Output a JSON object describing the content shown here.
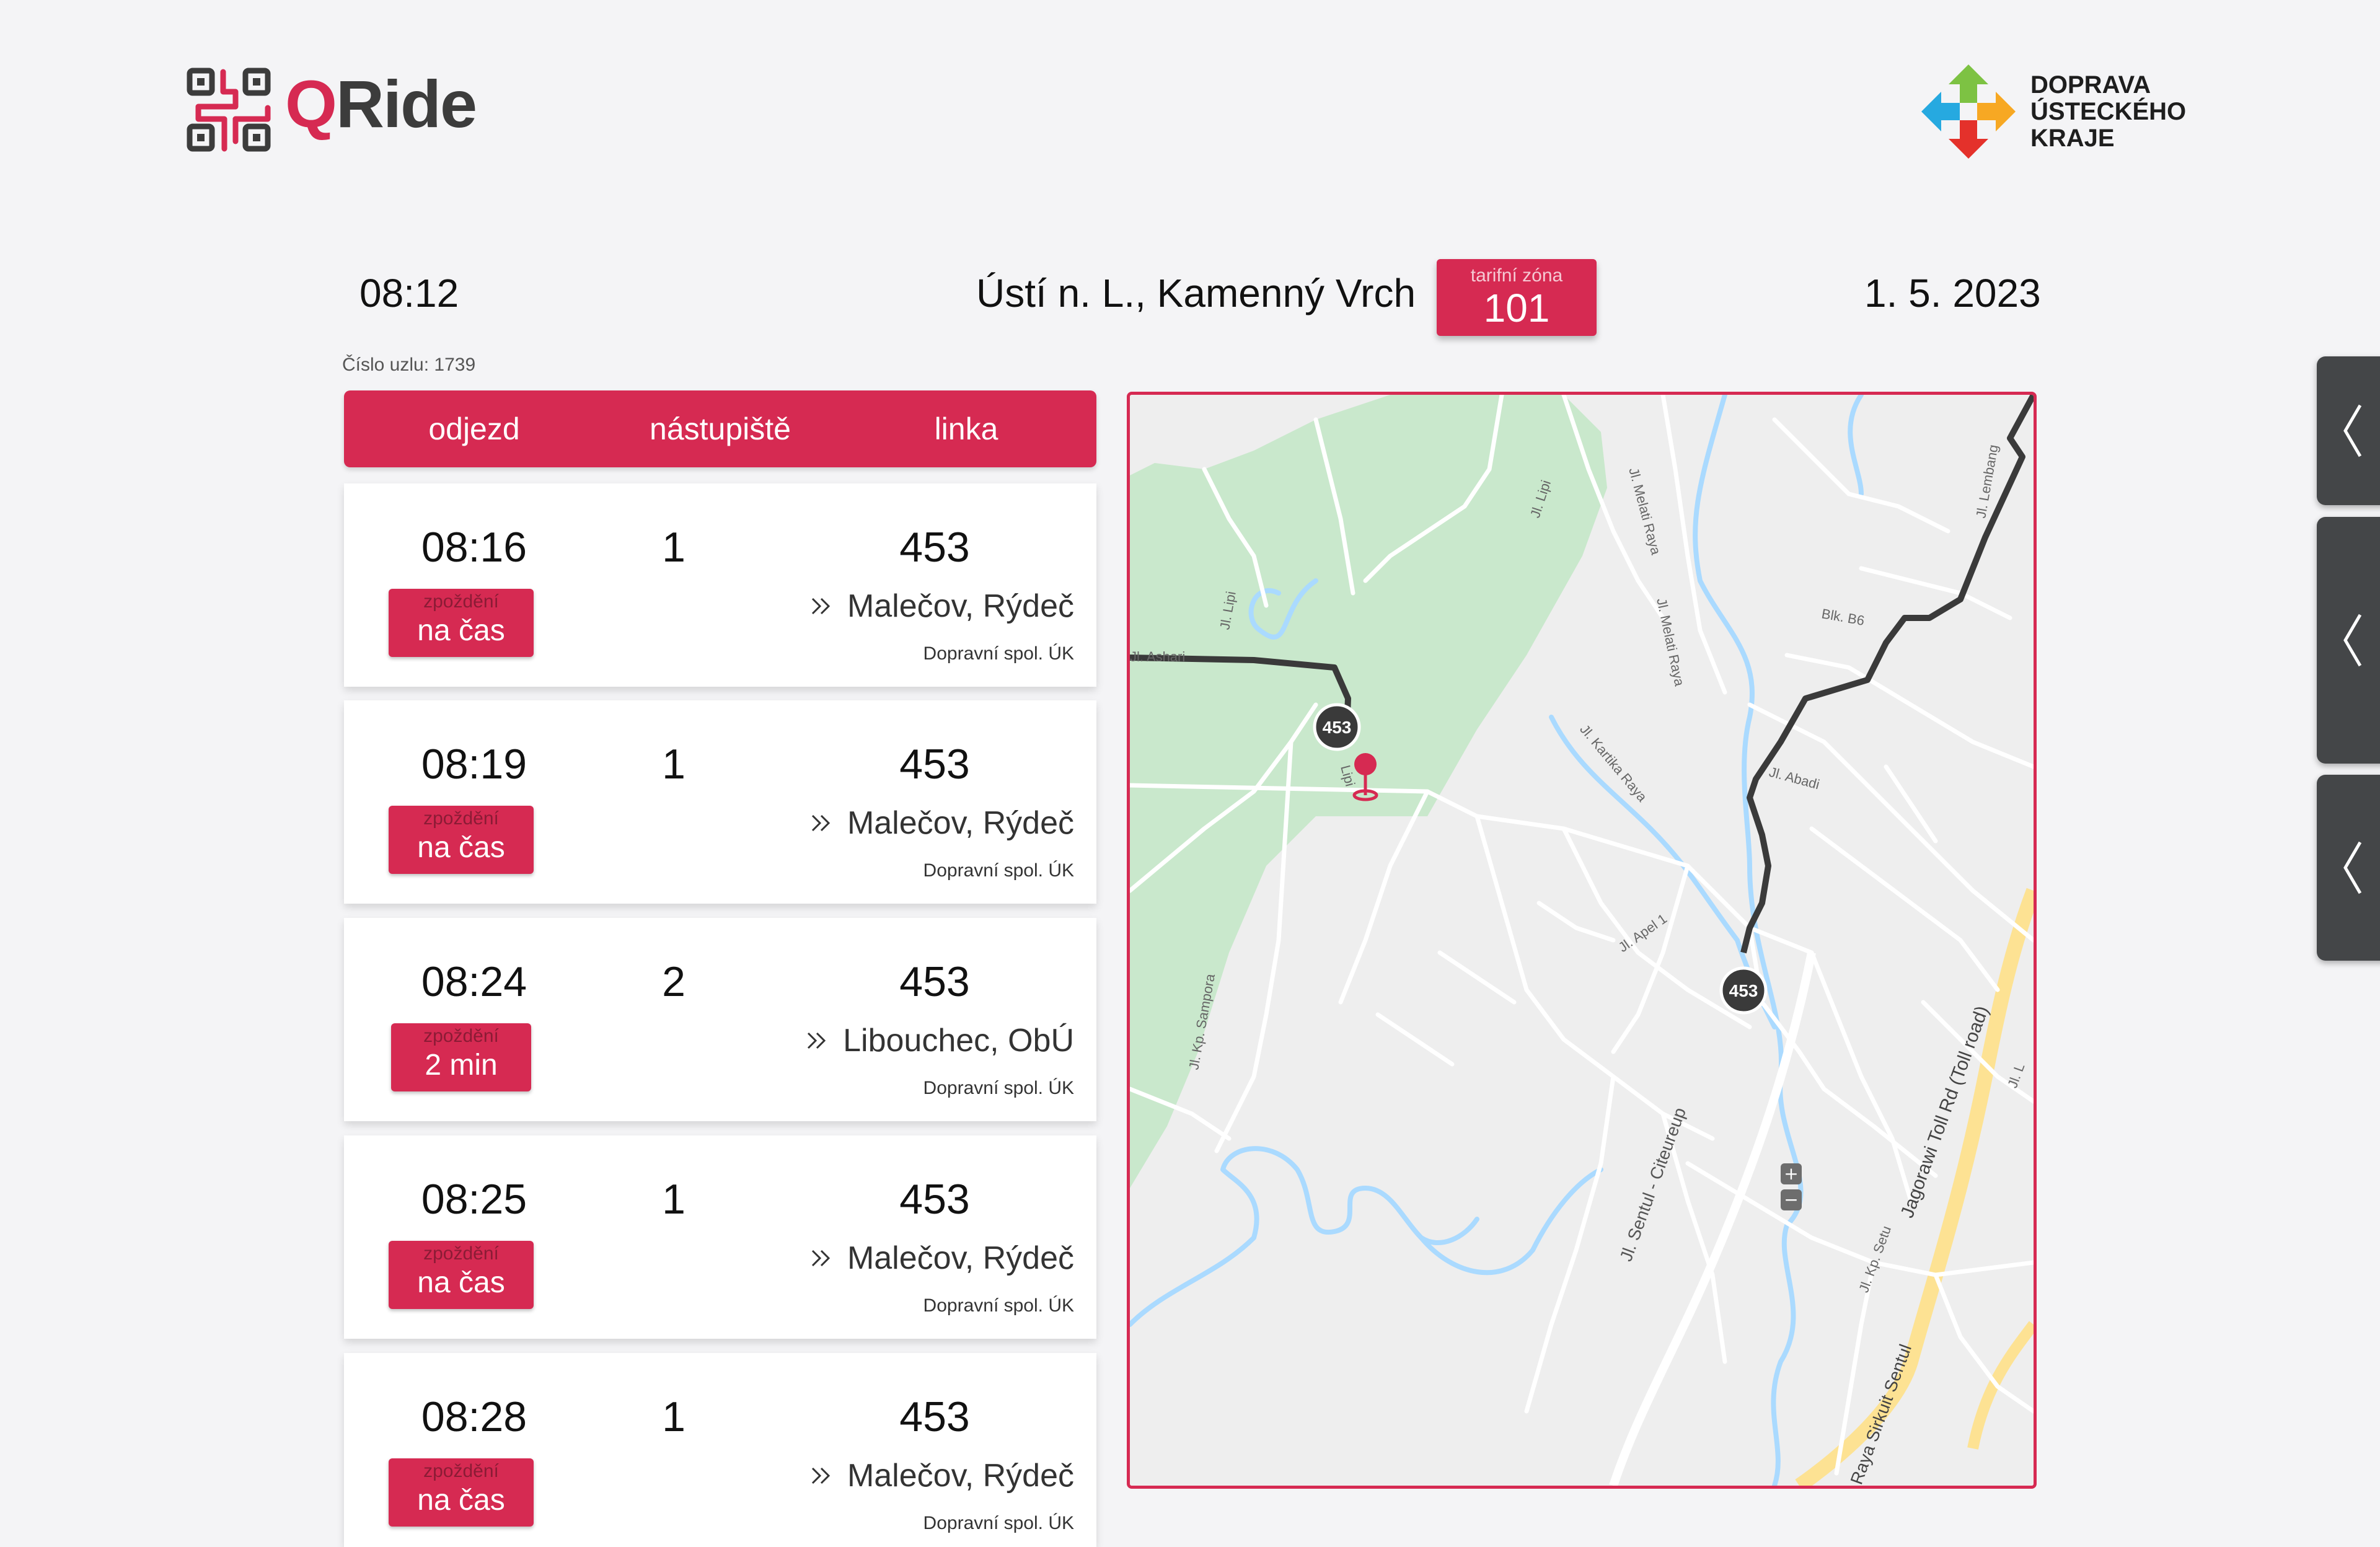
{
  "brand": {
    "name_q": "Q",
    "name_rest": "Ride"
  },
  "operator_logo": {
    "line1": "DOPRAVA",
    "line2": "ÚSTECKÉHO",
    "line3": "KRAJE"
  },
  "info": {
    "time": "08:12",
    "stop_name": "Ústí n. L., Kamenný Vrch",
    "zone_label": "tarifní zóna",
    "zone_value": "101",
    "date": "1. 5. 2023",
    "node_number": "Číslo uzlu: 1739"
  },
  "table": {
    "headers": {
      "departure": "odjezd",
      "platform": "nástupiště",
      "line": "linka"
    },
    "delay_label": "zpoždění",
    "departures": [
      {
        "time": "08:16",
        "platform": "1",
        "line": "453",
        "delay": "na čas",
        "destination": "Malečov, Rýdeč",
        "operator": "Dopravní spol. ÚK"
      },
      {
        "time": "08:19",
        "platform": "1",
        "line": "453",
        "delay": "na čas",
        "destination": "Malečov, Rýdeč",
        "operator": "Dopravní spol. ÚK"
      },
      {
        "time": "08:24",
        "platform": "2",
        "line": "453",
        "delay": "2 min",
        "destination": "Libouchec, ObÚ",
        "operator": "Dopravní spol. ÚK"
      },
      {
        "time": "08:25",
        "platform": "1",
        "line": "453",
        "delay": "na čas",
        "destination": "Malečov, Rýdeč",
        "operator": "Dopravní spol. ÚK"
      },
      {
        "time": "08:28",
        "platform": "1",
        "line": "453",
        "delay": "na čas",
        "destination": "Malečov, Rýdeč",
        "operator": "Dopravní spol. ÚK"
      }
    ]
  },
  "map": {
    "bus_marker_label": "453",
    "zoom_in": "+",
    "zoom_out": "−",
    "street_labels": {
      "ashari": "Jl. Ashari",
      "lipi_1": "Jl. Lipi",
      "lipi_2": "Jl. Lipi",
      "lipi_3": "Lipi",
      "melati_1": "Jl. Melati Raya",
      "melati_2": "Jl. Melati Raya",
      "blk": "Blk. B6",
      "kartika": "Jl. Kartika Raya",
      "abadi": "Jl. Abadi",
      "lembang": "Jl. Lembang",
      "apel": "Jl. Apel 1",
      "sampora": "Jl. Kp. Sampora",
      "sentul": "Jl. Sentul - Citeureup",
      "toll": "Jagorawi Toll Rd (Toll road)",
      "sirkuit": "Raya Sirkuit Sentul",
      "setu": "Jl. Kp. Setu",
      "jl": "Jl. L"
    },
    "colors": {
      "park": "#c9e8cc",
      "water": "#aadaff",
      "road": "#ffffff",
      "route": "#3a3a3a",
      "highway": "#fde293",
      "accent": "#d62a52"
    }
  },
  "side_buttons": [
    {
      "icon": "chevron-left-icon"
    },
    {
      "icon": "chevron-left-icon"
    },
    {
      "icon": "chevron-left-icon"
    }
  ]
}
